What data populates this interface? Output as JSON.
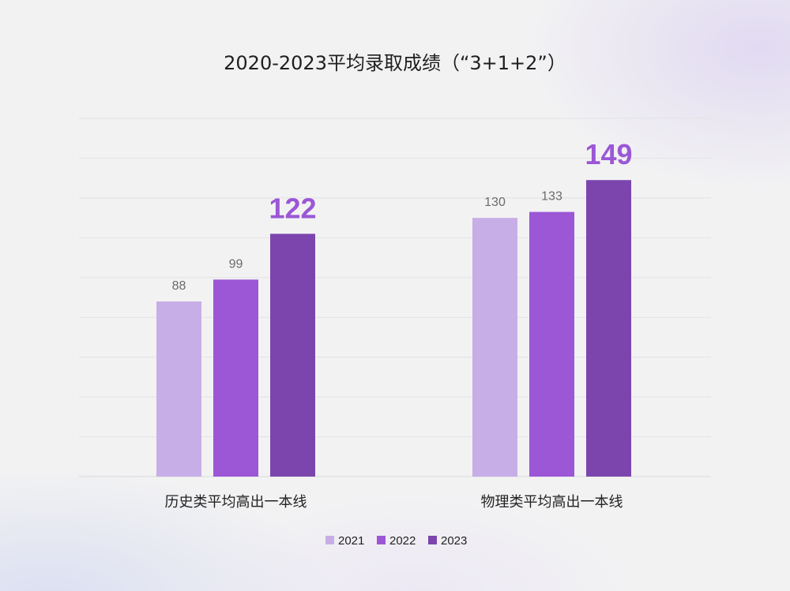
{
  "chart_data": {
    "type": "bar",
    "title": "2020-2023平均录取成绩（“3+1+2”）",
    "xlabel": "",
    "ylabel": "",
    "categories": [
      "历史类平均高出一本线",
      "物理类平均高出一本线"
    ],
    "series": [
      {
        "name": "2021",
        "values": [
          88,
          130
        ],
        "color": "#c8aee6"
      },
      {
        "name": "2022",
        "values": [
          99,
          133
        ],
        "color": "#9b57d6"
      },
      {
        "name": "2023",
        "values": [
          122,
          149
        ],
        "color": "#7c45ad"
      }
    ],
    "data_labels": [
      [
        "88",
        "99",
        "122"
      ],
      [
        "130",
        "133",
        "149"
      ]
    ],
    "highlight_series": "2023",
    "highlight_label_color": "#9b57d6",
    "ylim": [
      0,
      180
    ],
    "gridlines": [
      20,
      40,
      60,
      80,
      100,
      120,
      140,
      160,
      180
    ],
    "grid": true,
    "legend_position": "bottom-center"
  }
}
